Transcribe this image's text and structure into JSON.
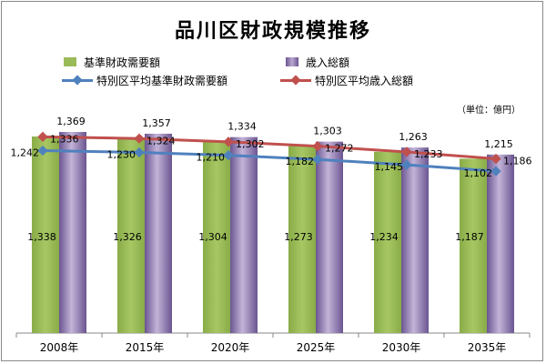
{
  "chart_data": {
    "type": "bar",
    "title": "品川区財政規模推移",
    "unit": "（単位：億円）",
    "categories": [
      "2008年",
      "2015年",
      "2020年",
      "2025年",
      "2030年",
      "2035年"
    ],
    "ylim": [
      0,
      1400
    ],
    "grid": false,
    "legend": "top",
    "series": [
      {
        "name": "基準財政需要額",
        "kind": "bar",
        "color": "#9bbb59",
        "values": [
          1338,
          1326,
          1304,
          1273,
          1234,
          1187
        ]
      },
      {
        "name": "歳入総額",
        "kind": "bar",
        "color": "#8064a2",
        "values": [
          1369,
          1357,
          1334,
          1303,
          1263,
          1215
        ]
      },
      {
        "name": "特別区平均基準財政需要額",
        "kind": "line",
        "color": "#4f81bd",
        "values": [
          1242,
          1230,
          1210,
          1182,
          1145,
          1102
        ]
      },
      {
        "name": "特別区平均歳入総額",
        "kind": "line",
        "color": "#c0504d",
        "values": [
          1336,
          1324,
          1302,
          1272,
          1233,
          1186
        ]
      }
    ]
  }
}
